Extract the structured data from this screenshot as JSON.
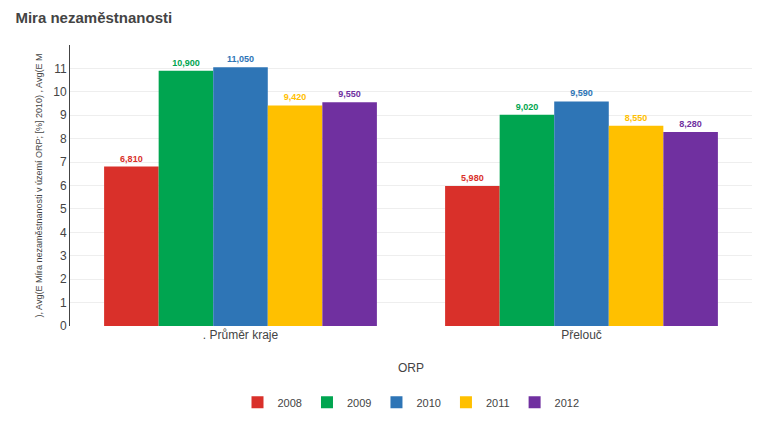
{
  "chart_data": {
    "type": "bar",
    "title": "Mira nezaměstnanosti",
    "xlabel": "ORP",
    "ylabel": "), Avg(E Míra nezaměstnanosti v území ORP; [%] 2010) , Avg(E M",
    "categories": [
      ". Průměr kraje",
      "Přelouč"
    ],
    "series": [
      {
        "name": "2008",
        "color": "#d9302a",
        "values": [
          6.81,
          5.98
        ],
        "value_labels": [
          "6,810",
          "5,980"
        ]
      },
      {
        "name": "2009",
        "color": "#00a550",
        "values": [
          10.9,
          9.02
        ],
        "value_labels": [
          "10,900",
          "9,020"
        ]
      },
      {
        "name": "2010",
        "color": "#2e75b6",
        "values": [
          11.05,
          9.59
        ],
        "value_labels": [
          "11,050",
          "9,590"
        ]
      },
      {
        "name": "2011",
        "color": "#ffc000",
        "values": [
          9.42,
          8.55
        ],
        "value_labels": [
          "9,420",
          "8,550"
        ]
      },
      {
        "name": "2012",
        "color": "#7030a0",
        "values": [
          9.55,
          8.28
        ],
        "value_labels": [
          "9,550",
          "8,280"
        ]
      }
    ],
    "ylim": [
      0,
      12
    ],
    "yticks": [
      0,
      1,
      2,
      3,
      4,
      5,
      6,
      7,
      8,
      9,
      10,
      11
    ],
    "grid": true,
    "data_labels": true,
    "legend": "bottom"
  }
}
